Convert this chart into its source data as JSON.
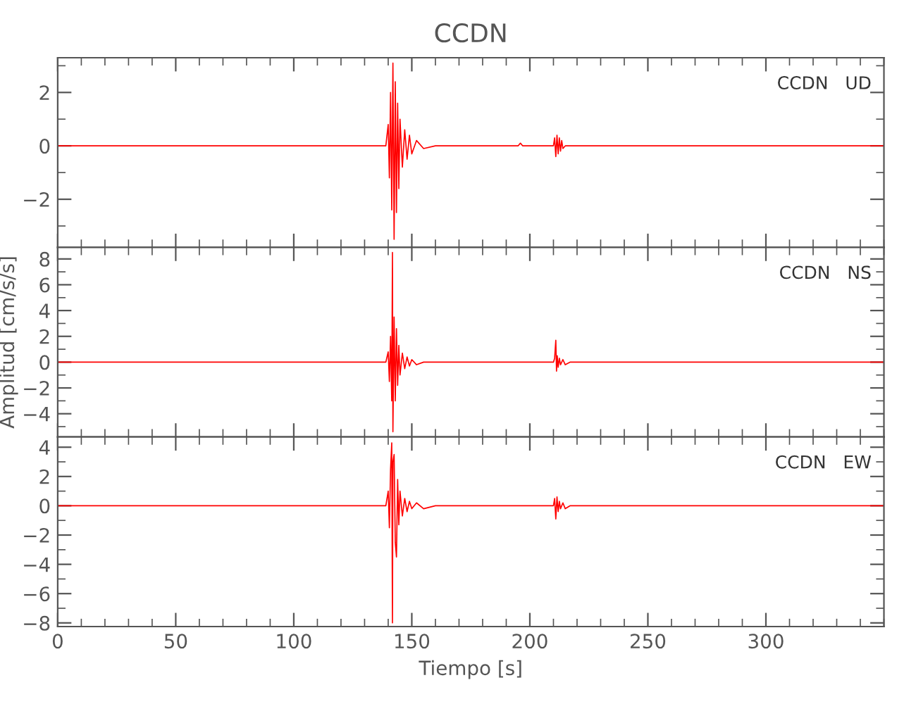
{
  "chart_data": [
    {
      "type": "line",
      "title": "CCDN",
      "annotations": [
        "CCDN   UD"
      ],
      "xlim": [
        0,
        350
      ],
      "xticks": [
        0,
        50,
        100,
        150,
        200,
        250,
        300
      ],
      "ylim": [
        -3.8,
        3.3
      ],
      "yticks": [
        {
          "value": -2,
          "label": "−2"
        },
        0,
        2
      ],
      "tick_labels": "y",
      "grid": false,
      "x": [
        0,
        50,
        100,
        135,
        139,
        140,
        140.5,
        141,
        141.5,
        142,
        142.5,
        143,
        143.5,
        144,
        144.5,
        145,
        146,
        147,
        148,
        149,
        150,
        152,
        155,
        160,
        195,
        196,
        197,
        210,
        210.5,
        211,
        211.5,
        212,
        212.5,
        213,
        213.5,
        214,
        215,
        217,
        220,
        260,
        300,
        350
      ],
      "series": [
        {
          "color": "#ff0000",
          "values": [
            0,
            0,
            0,
            0,
            0,
            0.8,
            -1.2,
            2.0,
            -2.4,
            3.1,
            -3.5,
            2.4,
            -2.5,
            1.6,
            -1.6,
            1.0,
            -0.8,
            0.6,
            -0.5,
            0.4,
            -0.3,
            0.2,
            -0.1,
            0,
            0,
            0.1,
            0,
            0,
            0.3,
            -0.4,
            0.4,
            -0.3,
            0.3,
            -0.2,
            0.2,
            -0.1,
            0,
            0,
            0,
            0,
            0,
            0
          ]
        }
      ]
    },
    {
      "type": "line",
      "ylabel": "Amplitud [cm/s/s]",
      "annotations": [
        "CCDN   NS"
      ],
      "xlim": [
        0,
        350
      ],
      "xticks": [
        0,
        50,
        100,
        150,
        200,
        250,
        300
      ],
      "ylim": [
        -5.8,
        8.9
      ],
      "yticks": [
        {
          "value": -4,
          "label": "−4"
        },
        {
          "value": -2,
          "label": "−2"
        },
        0,
        2,
        4,
        6,
        8
      ],
      "tick_labels": "y",
      "grid": false,
      "x": [
        0,
        50,
        100,
        135,
        139,
        140,
        140.5,
        141,
        141.5,
        141.8,
        142,
        142.5,
        143,
        143.5,
        144,
        144.5,
        145,
        146,
        147,
        148,
        149,
        150,
        152,
        155,
        160,
        195,
        210,
        210.5,
        211,
        211.3,
        211.6,
        212,
        212.5,
        213,
        214,
        215,
        217,
        220,
        260,
        300,
        350
      ],
      "series": [
        {
          "color": "#ff0000",
          "values": [
            0,
            0,
            0,
            0,
            0,
            0.8,
            -1.5,
            2.0,
            -3.0,
            8.5,
            -5.4,
            3.5,
            -3.0,
            2.6,
            -1.8,
            1.3,
            -1.0,
            0.7,
            -0.5,
            0.4,
            -0.3,
            0.2,
            -0.2,
            0,
            0,
            0,
            0,
            0.3,
            1.7,
            -0.7,
            0.5,
            -0.4,
            0.3,
            -0.2,
            0.2,
            -0.2,
            0,
            0,
            0,
            0,
            0
          ]
        }
      ]
    },
    {
      "type": "line",
      "xlabel": "Tiempo [s]",
      "annotations": [
        "CCDN   EW"
      ],
      "xlim": [
        0,
        350
      ],
      "xticks": [
        0,
        50,
        100,
        150,
        200,
        250,
        300
      ],
      "ylim": [
        -8.25,
        4.7
      ],
      "yticks": [
        {
          "value": -8,
          "label": "−8"
        },
        {
          "value": -6,
          "label": "−6"
        },
        {
          "value": -4,
          "label": "−4"
        },
        {
          "value": -2,
          "label": "−2"
        },
        0,
        2,
        4
      ],
      "grid": false,
      "x": [
        0,
        50,
        100,
        135,
        139,
        140,
        140.5,
        141,
        141.5,
        141.8,
        142,
        142.5,
        143,
        143.5,
        144,
        144.5,
        145,
        146,
        147,
        148,
        149,
        150,
        152,
        155,
        160,
        195,
        210,
        210.5,
        211,
        211.5,
        212,
        212.5,
        213,
        214,
        215,
        217,
        220,
        260,
        300,
        350
      ],
      "series": [
        {
          "color": "#ff0000",
          "values": [
            0,
            0,
            0,
            0,
            0,
            1.0,
            -1.5,
            2.5,
            4.3,
            -8.0,
            3.0,
            3.5,
            -2.5,
            -3.5,
            1.8,
            -1.3,
            1.0,
            -0.7,
            0.5,
            -0.4,
            0.3,
            -0.2,
            0.2,
            -0.2,
            0,
            0,
            0,
            0.5,
            -0.9,
            0.6,
            -0.4,
            0.3,
            -0.2,
            0.2,
            -0.2,
            0,
            0,
            0,
            0,
            0
          ]
        }
      ]
    }
  ]
}
